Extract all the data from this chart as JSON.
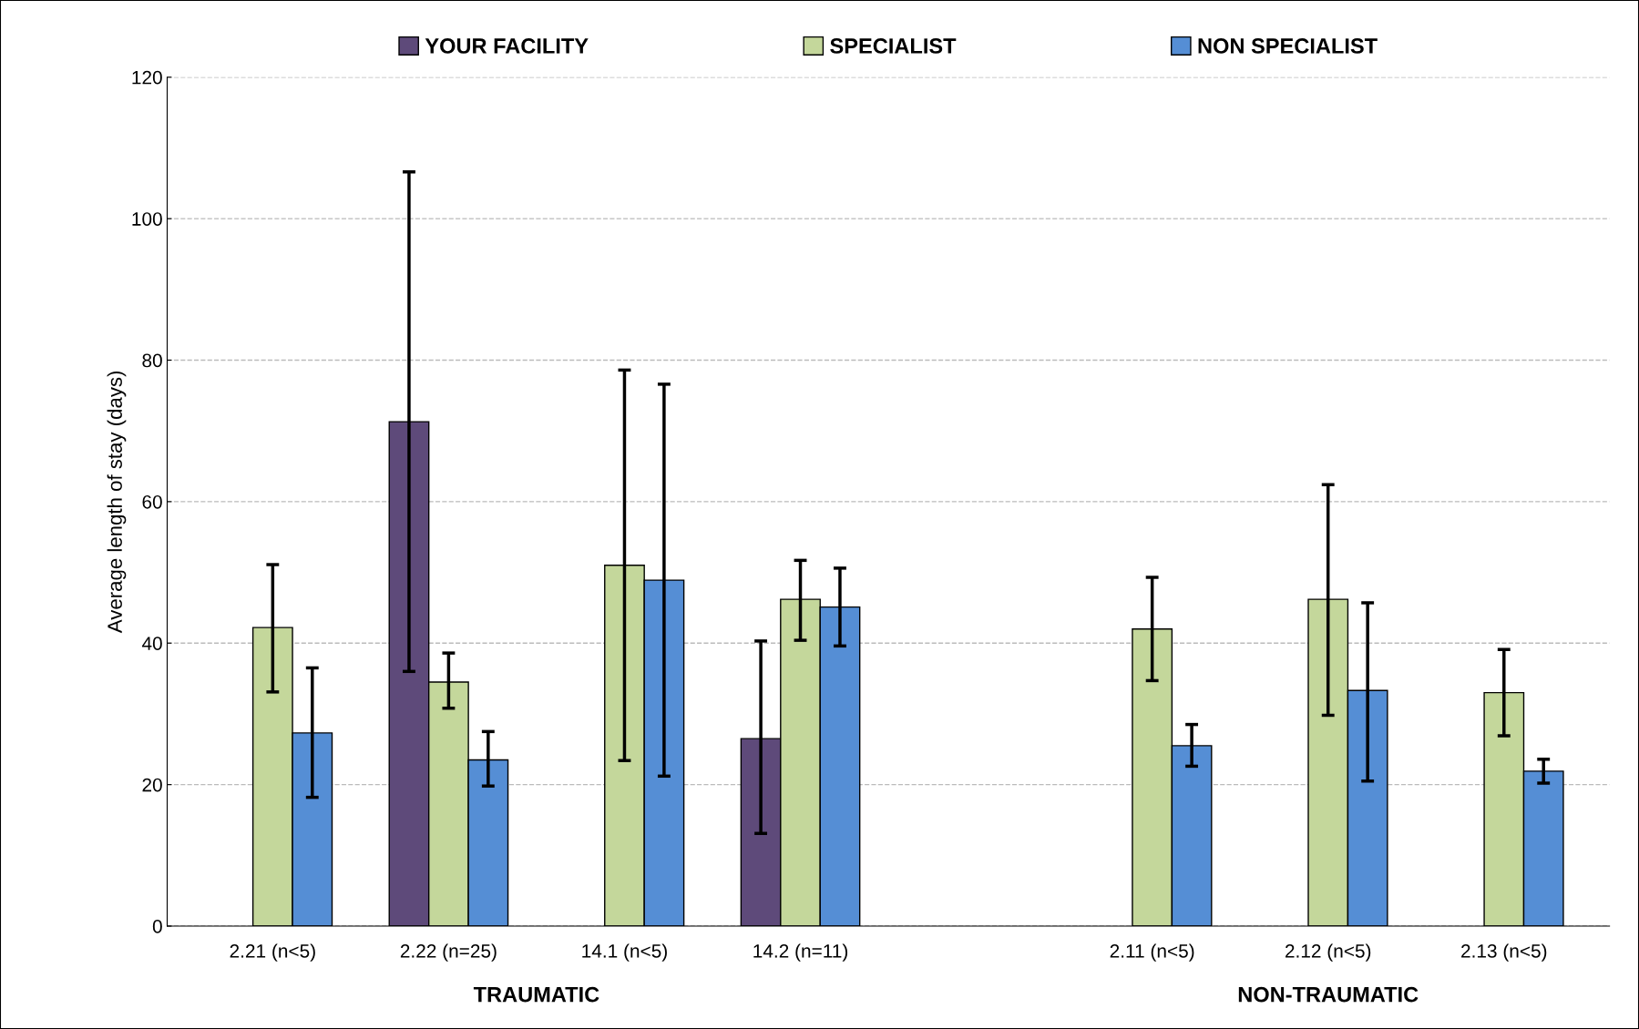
{
  "chart_data": {
    "type": "bar",
    "ylabel": "Average length of stay (days)",
    "categories": [
      "2.21 (n<5)",
      "2.22 (n=25)",
      "14.1 (n<5)",
      "14.2 (n=11)",
      null,
      "2.11 (n<5)",
      "2.12 (n<5)",
      "2.13 (n<5)"
    ],
    "series": [
      {
        "name": "YOUR FACILITY",
        "color": "#5e4a7a",
        "values": [
          null,
          71.3,
          null,
          26.5,
          null,
          null,
          null,
          null
        ],
        "errors": [
          null,
          [
            36,
            106.6
          ],
          null,
          [
            13.1,
            40.3
          ],
          null,
          null,
          null,
          null
        ]
      },
      {
        "name": "SPECIALIST",
        "color": "#c4d79b",
        "values": [
          42.2,
          34.5,
          51,
          46.2,
          null,
          42,
          46.2,
          33
        ],
        "errors": [
          [
            33.1,
            51.1
          ],
          [
            30.8,
            38.6
          ],
          [
            23.4,
            78.6
          ],
          [
            40.4,
            51.7
          ],
          null,
          [
            34.7,
            49.3
          ],
          [
            29.8,
            62.4
          ],
          [
            26.9,
            39.1
          ]
        ]
      },
      {
        "name": "NON SPECIALIST",
        "color": "#558ed5",
        "values": [
          27.3,
          23.5,
          48.9,
          45.1,
          null,
          25.5,
          33.3,
          21.9
        ],
        "errors": [
          [
            18.2,
            36.5
          ],
          [
            19.8,
            27.5
          ],
          [
            21.2,
            76.6
          ],
          [
            39.6,
            50.6
          ],
          null,
          [
            22.6,
            28.5
          ],
          [
            20.5,
            45.7
          ],
          [
            20.2,
            23.6
          ]
        ]
      }
    ],
    "ylim": [
      0,
      120
    ],
    "yticks": [
      0,
      20,
      40,
      60,
      80,
      100,
      120
    ],
    "grid": "y",
    "legend": "top",
    "annotations": [
      "TRAUMATIC",
      "NON-TRAUMATIC"
    ]
  }
}
